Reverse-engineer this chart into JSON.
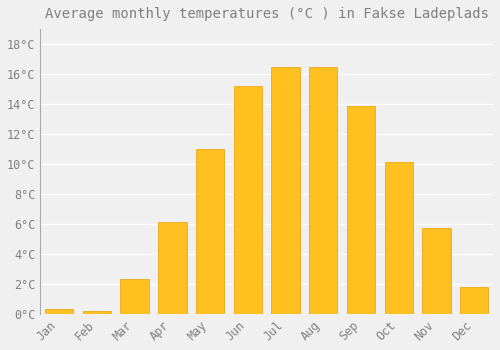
{
  "title": "Average monthly temperatures (°C ) in Fakse Ladeplads",
  "months": [
    "Jan",
    "Feb",
    "Mar",
    "Apr",
    "May",
    "Jun",
    "Jul",
    "Aug",
    "Sep",
    "Oct",
    "Nov",
    "Dec"
  ],
  "values": [
    0.3,
    0.2,
    2.3,
    6.1,
    11.0,
    15.2,
    16.5,
    16.5,
    13.9,
    10.1,
    5.7,
    1.8
  ],
  "bar_color_face": "#FFC020",
  "bar_color_edge": "#E8A000",
  "background_color": "#F0F0F0",
  "grid_color": "#FFFFFF",
  "text_color": "#808080",
  "yticks": [
    0,
    2,
    4,
    6,
    8,
    10,
    12,
    14,
    16,
    18
  ],
  "ylim": [
    0,
    19.0
  ],
  "title_fontsize": 10,
  "tick_fontsize": 8.5,
  "bar_width": 0.75
}
